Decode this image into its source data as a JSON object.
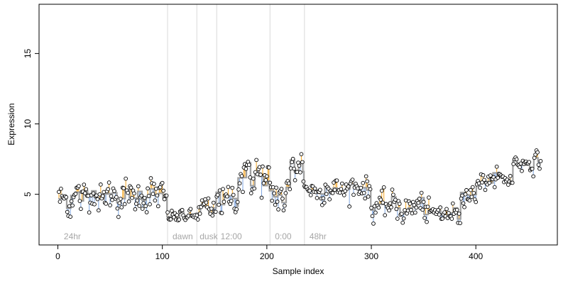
{
  "chart_data": {
    "type": "scatter",
    "xlabel": "Sample index",
    "ylabel": "Expression",
    "xlim": [
      -18,
      478
    ],
    "ylim": [
      1.4,
      18.5
    ],
    "x_ticks": [
      0,
      100,
      200,
      300,
      400
    ],
    "y_ticks": [
      5,
      10,
      15
    ],
    "grid": false,
    "colors": {
      "points_fill": "#ffffff",
      "points_stroke": "#000000",
      "fit_line": "#a0a0a0",
      "residual_above": "#f5a623",
      "residual_below": "#7fa6e0",
      "separator": "#d9d9d9",
      "annotation": "#a6a6a6"
    },
    "annotations": [
      {
        "label": "24hr",
        "x": 3
      },
      {
        "label": "dawn",
        "x": 107
      },
      {
        "label": "dusk",
        "x": 133
      },
      {
        "label": "12:00",
        "x": 153
      },
      {
        "label": "0:00",
        "x": 205
      },
      {
        "label": "48hr",
        "x": 238
      }
    ],
    "separators": [
      105,
      133,
      152,
      203,
      236
    ],
    "segments": [
      {
        "x0": 1,
        "x1": 104,
        "level": 4.8,
        "noise": 0.85
      },
      {
        "x0": 105,
        "x1": 132,
        "level": 3.4,
        "noise": 0.3
      },
      {
        "x0": 133,
        "x1": 151,
        "level": 3.9,
        "noise": 0.6
      },
      {
        "x0": 152,
        "x1": 172,
        "level": 4.4,
        "noise": 0.85
      },
      {
        "x0": 173,
        "x1": 202,
        "level": 6.3,
        "noise": 1.1
      },
      {
        "x0": 203,
        "x1": 222,
        "level": 4.9,
        "noise": 1.0
      },
      {
        "x0": 223,
        "x1": 235,
        "level": 7.0,
        "noise": 0.95
      },
      {
        "x0": 236,
        "x1": 299,
        "level": 5.4,
        "noise": 0.6
      },
      {
        "x0": 300,
        "x1": 350,
        "level": 4.1,
        "noise": 0.7
      },
      {
        "x0": 351,
        "x1": 385,
        "level": 3.6,
        "noise": 0.55
      },
      {
        "x0": 386,
        "x1": 400,
        "level": 4.9,
        "noise": 0.6
      },
      {
        "x0": 401,
        "x1": 435,
        "level": 6.0,
        "noise": 0.5
      },
      {
        "x0": 436,
        "x1": 462,
        "level": 7.3,
        "noise": 0.4
      }
    ]
  }
}
